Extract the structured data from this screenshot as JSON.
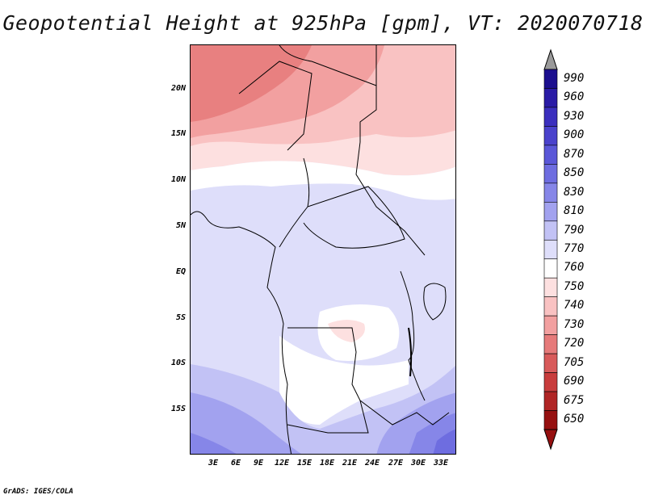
{
  "title": "Geopotential Height at 925hPa [gpm], VT: 2020070718",
  "credit": "GrADS: IGES/COLA",
  "latitude_labels": [
    "20N",
    "15N",
    "10N",
    "5N",
    "EQ",
    "5S",
    "10S",
    "15S"
  ],
  "longitude_labels": [
    "3E",
    "6E",
    "9E",
    "12E",
    "15E",
    "18E",
    "21E",
    "24E",
    "27E",
    "30E",
    "33E"
  ],
  "colorbar": {
    "levels": [
      "990",
      "960",
      "930",
      "900",
      "870",
      "850",
      "830",
      "810",
      "790",
      "770",
      "760",
      "750",
      "740",
      "730",
      "720",
      "705",
      "690",
      "675",
      "650"
    ],
    "colors": [
      "#1c0f8f",
      "#2a1ba6",
      "#3b2fbe",
      "#4a42cc",
      "#5a57d8",
      "#6e6de0",
      "#8686e8",
      "#a2a2ef",
      "#c2c2f5",
      "#dedefa",
      "#ffffff",
      "#fde0e0",
      "#f9c2c2",
      "#f2a0a0",
      "#e67a7a",
      "#d85a5a",
      "#c83c3c",
      "#b02525",
      "#961010"
    ],
    "top_arrow_color": "#9a9a9a",
    "bottom_arrow_color": "#961010"
  },
  "colors": {
    "land_border": "#000000",
    "background": "#ffffff"
  }
}
